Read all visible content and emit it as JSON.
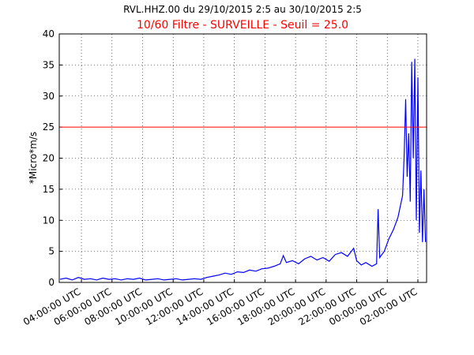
{
  "chart_data": {
    "type": "line",
    "title": "RVL.HHZ.00 du 29/10/2015 2:5 au 30/10/2015 2:5",
    "subtitle": "10/60 Filtre - SURVEILLE - Seuil = 25.0",
    "subtitle_color": "#ff0000",
    "y_label": "*Micro*m/s",
    "x": [
      2.6,
      3,
      3.4,
      3.8,
      4.2,
      4.6,
      5,
      5.4,
      5.8,
      6.2,
      6.6,
      7,
      7.4,
      7.8,
      8.2,
      8.6,
      9,
      9.4,
      9.8,
      10.2,
      10.6,
      11,
      11.4,
      11.8,
      12.2,
      12.6,
      13,
      13.4,
      13.8,
      14.2,
      14.6,
      15,
      15.4,
      15.8,
      16.2,
      16.6,
      17,
      17.2,
      17.4,
      17.8,
      18.2,
      18.6,
      19,
      19.4,
      19.8,
      20.2,
      20.6,
      21,
      21.4,
      21.8,
      22,
      22.3,
      22.6,
      23,
      23.3,
      23.4,
      23.5,
      23.8,
      24.1,
      24.4,
      24.7,
      25,
      25.1,
      25.2,
      25.3,
      25.4,
      25.5,
      25.6,
      25.7,
      25.8,
      25.9,
      26,
      26.1,
      26.2,
      26.3,
      26.4,
      26.5
    ],
    "series": [
      {
        "color": "#0000ff",
        "values": [
          0.5,
          0.7,
          0.4,
          0.8,
          0.5,
          0.6,
          0.4,
          0.7,
          0.5,
          0.6,
          0.4,
          0.6,
          0.5,
          0.7,
          0.4,
          0.5,
          0.6,
          0.4,
          0.5,
          0.6,
          0.4,
          0.5,
          0.6,
          0.5,
          0.8,
          1.0,
          1.2,
          1.5,
          1.3,
          1.7,
          1.6,
          2.0,
          1.8,
          2.2,
          2.3,
          2.6,
          3.0,
          4.3,
          3.2,
          3.5,
          3.0,
          3.8,
          4.2,
          3.6,
          4.0,
          3.4,
          4.5,
          4.8,
          4.2,
          5.5,
          3.5,
          2.8,
          3.2,
          2.6,
          3.0,
          11.8,
          4.0,
          5.0,
          7.0,
          8.5,
          10.5,
          14.0,
          20.0,
          29.5,
          17.0,
          24.0,
          13.0,
          35.5,
          20.0,
          36.0,
          10.0,
          33.0,
          8.0,
          18.0,
          6.5,
          15.0,
          6.5
        ]
      }
    ],
    "threshold": {
      "value": 25,
      "color": "#ff0000"
    },
    "xlim": [
      2.55,
      26.57
    ],
    "xticks": [
      {
        "value": 4,
        "label": "04:00:00 UTC"
      },
      {
        "value": 6,
        "label": "06:00:00 UTC"
      },
      {
        "value": 8,
        "label": "08:00:00 UTC"
      },
      {
        "value": 10,
        "label": "10:00:00 UTC"
      },
      {
        "value": 12,
        "label": "12:00:00 UTC"
      },
      {
        "value": 14,
        "label": "14:00:00 UTC"
      },
      {
        "value": 16,
        "label": "16:00:00 UTC"
      },
      {
        "value": 18,
        "label": "18:00:00 UTC"
      },
      {
        "value": 20,
        "label": "20:00:00 UTC"
      },
      {
        "value": 22,
        "label": "22:00:00 UTC"
      },
      {
        "value": 24,
        "label": "00:00:00 UTC"
      },
      {
        "value": 26,
        "label": "02:00:00 UTC"
      }
    ],
    "ylim": [
      0,
      40
    ],
    "yticks": [
      0,
      5,
      10,
      15,
      20,
      25,
      30,
      35,
      40
    ],
    "grid": true
  }
}
